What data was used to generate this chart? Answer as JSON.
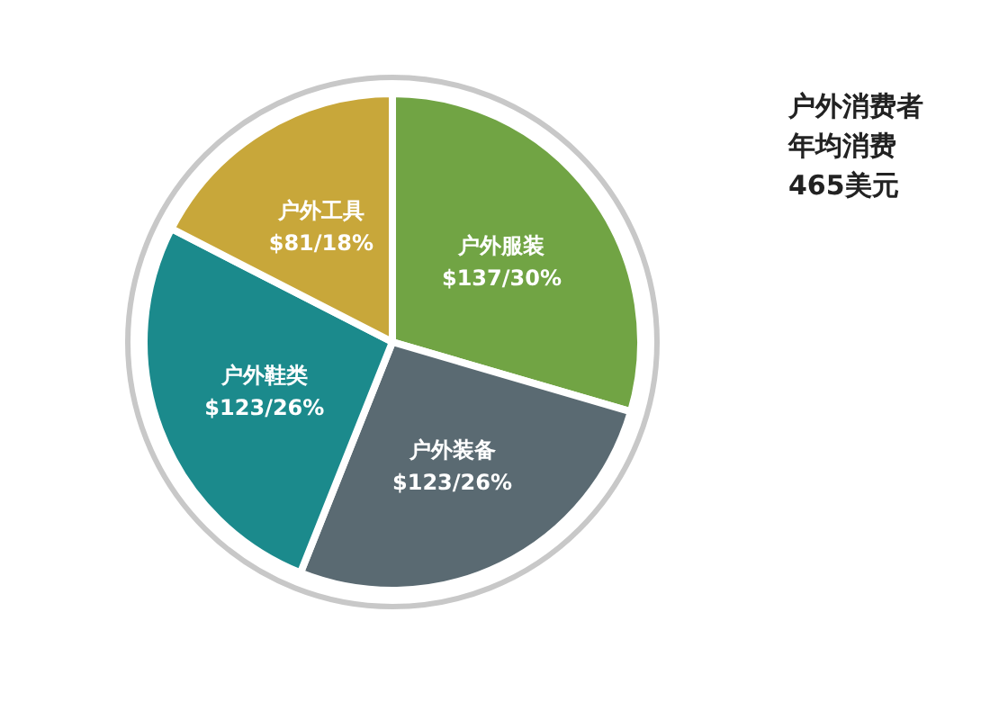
{
  "chart_data": {
    "type": "pie",
    "categories": [
      "户外服装",
      "户外装备",
      "户外鞋类",
      "户外工具"
    ],
    "values": [
      137,
      123,
      123,
      81
    ],
    "value_labels": [
      "$137/30%",
      "$123/26%",
      "$123/26%",
      "$81/18%"
    ],
    "colors": [
      "#71a444",
      "#5a6a72",
      "#1b8a8c",
      "#c8a73a"
    ],
    "annotations": [
      "户外消费者",
      "年均消费",
      "465美元"
    ]
  }
}
